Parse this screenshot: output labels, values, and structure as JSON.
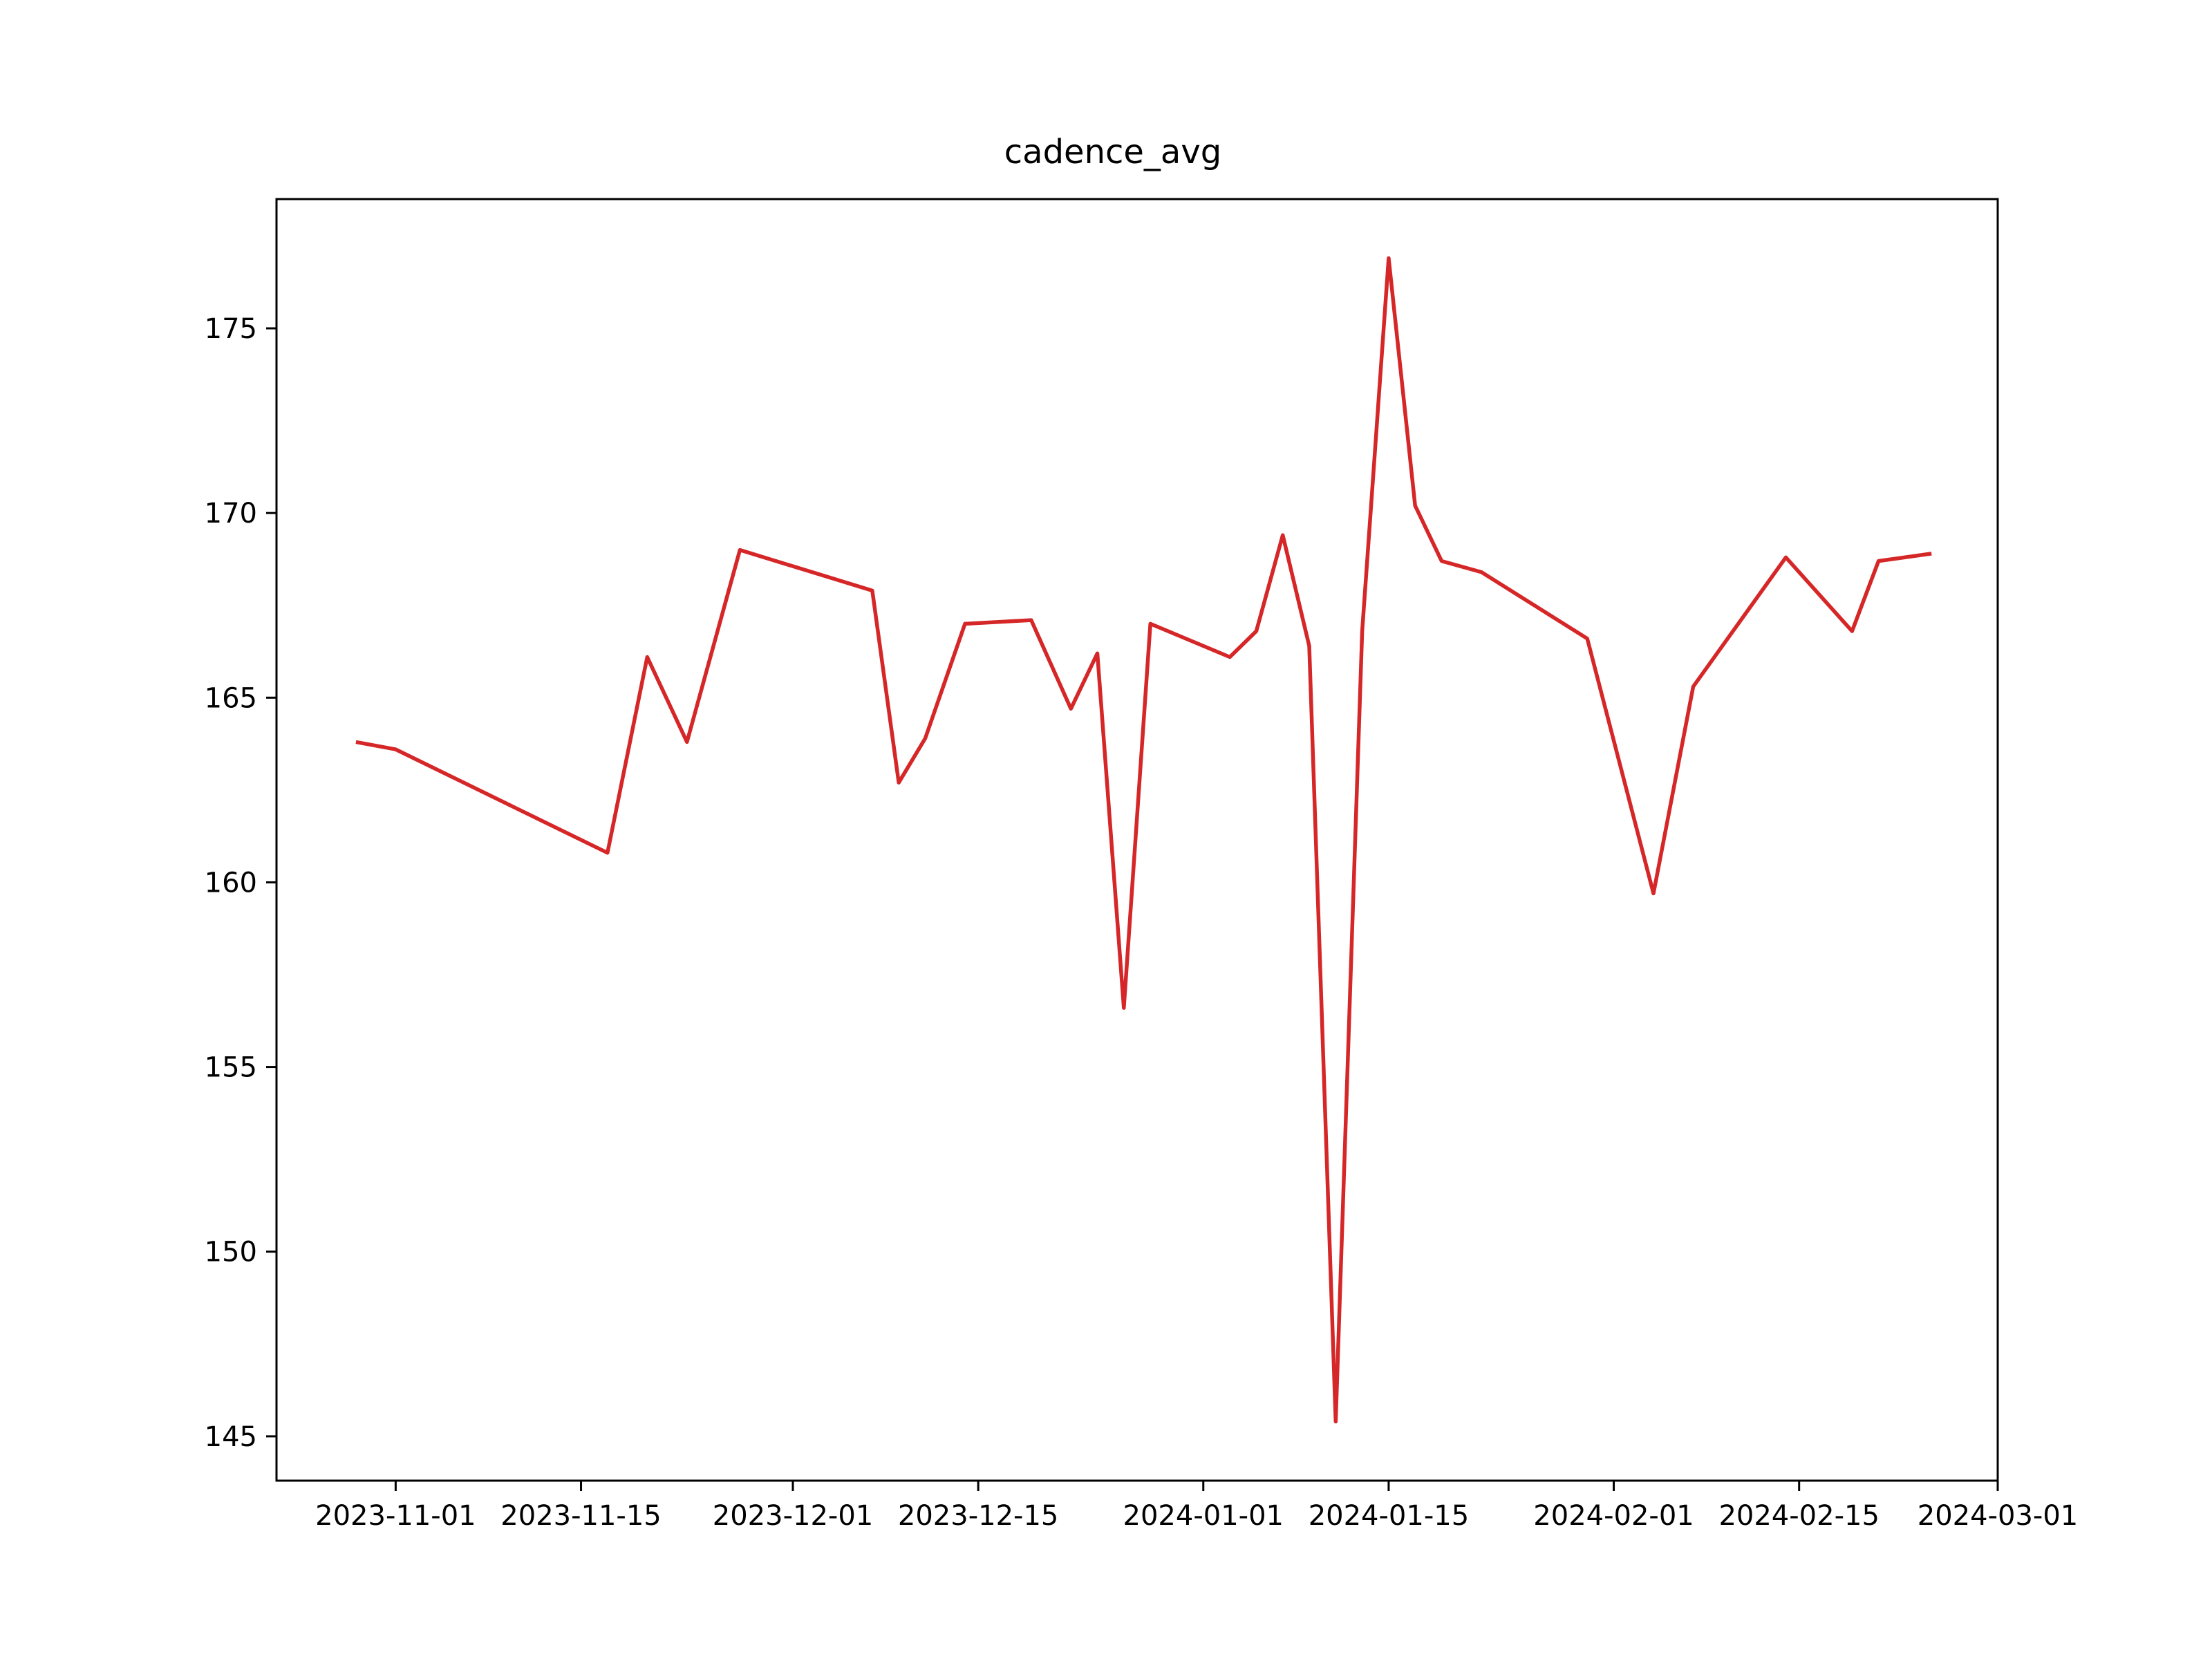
{
  "chart_data": {
    "type": "line",
    "title": "cadence_avg",
    "xlabel": "",
    "ylabel": "",
    "x_ticks": [
      "2023-11-01",
      "2023-11-15",
      "2023-12-01",
      "2023-12-15",
      "2024-01-01",
      "2024-01-15",
      "2024-02-01",
      "2024-02-15",
      "2024-03-01"
    ],
    "y_ticks": [
      145,
      150,
      155,
      160,
      165,
      170,
      175
    ],
    "xlim": [
      "2023-10-23",
      "2024-03-01"
    ],
    "ylim": [
      143.8,
      178.5
    ],
    "grid": false,
    "line_color": "#d62728",
    "series": [
      {
        "x": [
          "2023-10-29",
          "2023-11-01",
          "2023-11-17",
          "2023-11-20",
          "2023-11-23",
          "2023-11-27",
          "2023-12-07",
          "2023-12-09",
          "2023-12-11",
          "2023-12-14",
          "2023-12-19",
          "2023-12-22",
          "2023-12-24",
          "2023-12-26",
          "2023-12-28",
          "2024-01-03",
          "2024-01-05",
          "2024-01-07",
          "2024-01-09",
          "2024-01-11",
          "2024-01-13",
          "2024-01-15",
          "2024-01-17",
          "2024-01-19",
          "2024-01-22",
          "2024-01-30",
          "2024-02-04",
          "2024-02-07",
          "2024-02-14",
          "2024-02-19",
          "2024-02-21",
          "2024-02-25"
        ],
        "values": [
          163.8,
          163.6,
          160.8,
          166.1,
          163.8,
          169.0,
          167.9,
          162.7,
          163.9,
          167.0,
          167.1,
          164.7,
          166.2,
          156.6,
          167.0,
          166.1,
          166.8,
          169.4,
          166.4,
          145.4,
          166.8,
          176.9,
          170.2,
          168.7,
          168.4,
          166.6,
          159.7,
          165.3,
          168.8,
          166.8,
          168.7,
          168.9
        ]
      }
    ]
  }
}
